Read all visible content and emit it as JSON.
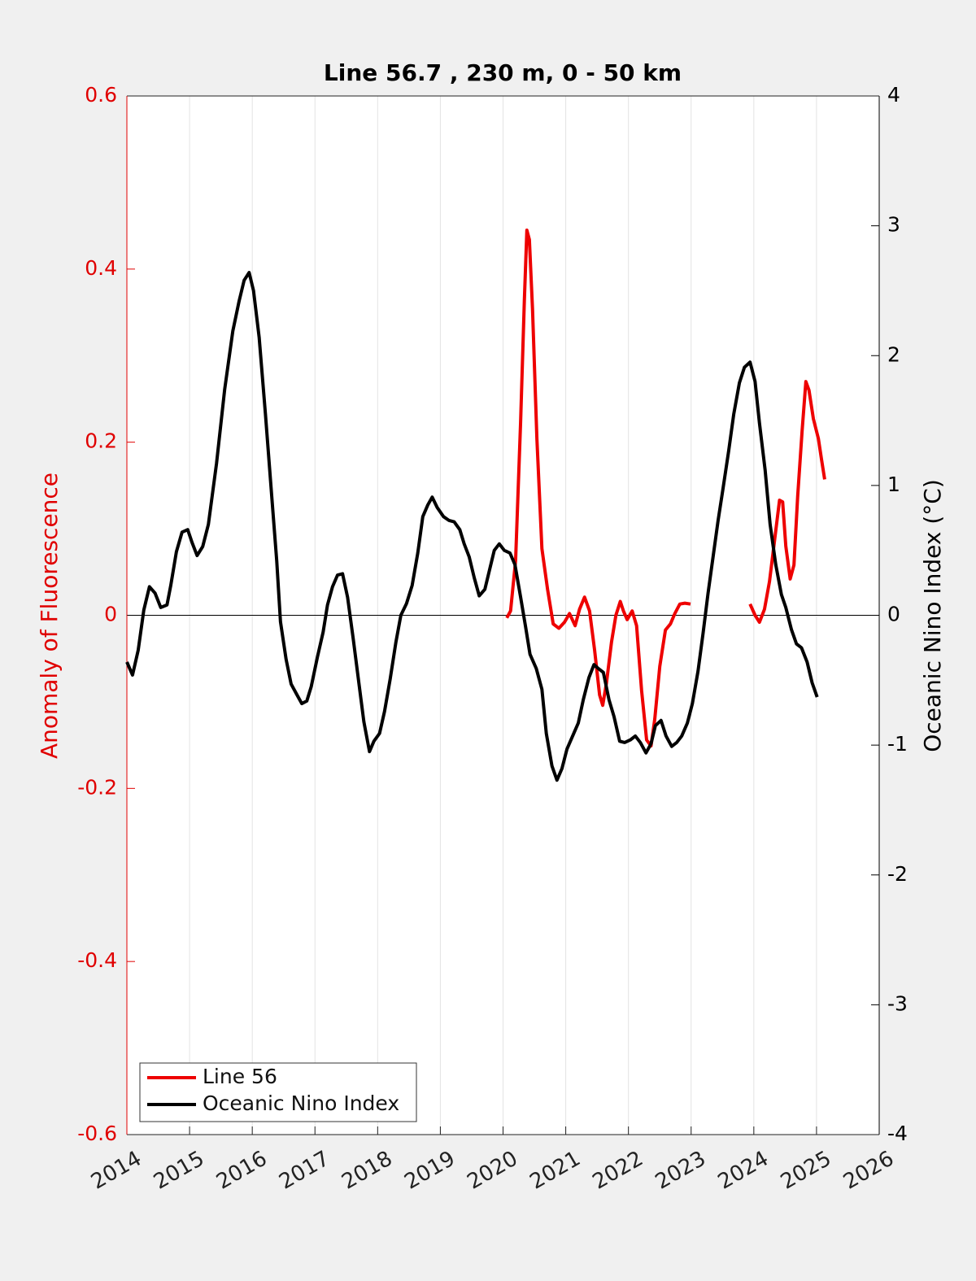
{
  "chart_data": {
    "type": "line",
    "title": "Line 56.7 , 230 m, 0 - 50 km",
    "ylabel": "Anomaly of Fluorescence",
    "y2label": "Oceanic Nino Index (°C)",
    "xlim": [
      2014,
      2026
    ],
    "xticks": [
      2014,
      2015,
      2016,
      2017,
      2018,
      2019,
      2020,
      2021,
      2022,
      2023,
      2024,
      2025,
      2026
    ],
    "ylim": [
      -0.6,
      0.6
    ],
    "yticks": [
      -0.6,
      -0.4,
      -0.2,
      0,
      0.2,
      0.4,
      0.6
    ],
    "y2lim": [
      -4,
      4
    ],
    "y2ticks": [
      -4,
      -3,
      -2,
      -1,
      0,
      1,
      2,
      3,
      4
    ],
    "ycolor": "#e00000",
    "y2color": "#000000",
    "grid": "x",
    "reference_line": 0,
    "legend": "lower left",
    "series": [
      {
        "name": "Line 56",
        "color": "#ee0000",
        "axis": "y",
        "x": [
          2020.06,
          2020.12,
          2020.2,
          2020.28,
          2020.34,
          2020.38,
          2020.42,
          2020.47,
          2020.54,
          2020.62,
          2020.71,
          2020.8,
          2020.89,
          2020.98,
          2021.06,
          2021.15,
          2021.22,
          2021.3,
          2021.38,
          2021.46,
          2021.54,
          2021.59,
          2021.65,
          2021.73,
          2021.8,
          2021.87,
          2021.92,
          2021.98,
          2022.06,
          2022.13,
          2022.21,
          2022.29,
          2022.36,
          2022.42,
          2022.5,
          2022.59,
          2022.67,
          2022.74,
          2022.82,
          2022.9,
          2022.99,
          2023.45,
          2023.94,
          2024.02,
          2024.09,
          2024.17,
          2024.25,
          2024.33,
          2024.41,
          2024.46,
          2024.51,
          2024.58,
          2024.64,
          2024.7,
          2024.77,
          2024.83,
          2024.88,
          2024.95,
          2025.03,
          2025.08,
          2025.13
        ],
        "values": [
          -0.003,
          0.005,
          0.063,
          0.223,
          0.364,
          0.445,
          0.434,
          0.354,
          0.204,
          0.077,
          0.03,
          -0.01,
          -0.015,
          -0.008,
          0.002,
          -0.012,
          0.007,
          0.021,
          0.005,
          -0.04,
          -0.092,
          -0.104,
          -0.078,
          -0.031,
          0,
          0.016,
          0.005,
          -0.005,
          0.005,
          -0.012,
          -0.087,
          -0.144,
          -0.151,
          -0.12,
          -0.059,
          -0.017,
          -0.01,
          0.002,
          0.013,
          0.014,
          0.013,
          null,
          0.013,
          0,
          -0.008,
          0.007,
          0.039,
          0.086,
          0.133,
          0.131,
          0.08,
          0.042,
          0.058,
          0.138,
          0.213,
          0.27,
          0.26,
          0.227,
          0.204,
          0.18,
          0.157
        ]
      },
      {
        "name": "Oceanic Nino Index",
        "color": "#000000",
        "axis": "y2",
        "x": [
          2014,
          2014.09,
          2014.18,
          2014.27,
          2014.36,
          2014.45,
          2014.54,
          2014.64,
          2014.7,
          2014.79,
          2014.88,
          2014.97,
          2015.04,
          2015.12,
          2015.21,
          2015.3,
          2015.43,
          2015.56,
          2015.69,
          2015.79,
          2015.87,
          2015.95,
          2016.02,
          2016.11,
          2016.21,
          2016.31,
          2016.39,
          2016.45,
          2016.54,
          2016.62,
          2016.71,
          2016.79,
          2016.87,
          2016.94,
          2017.04,
          2017.13,
          2017.2,
          2017.28,
          2017.36,
          2017.44,
          2017.52,
          2017.61,
          2017.7,
          2017.78,
          2017.87,
          2017.94,
          2018.03,
          2018.11,
          2018.2,
          2018.29,
          2018.37,
          2018.46,
          2018.55,
          2018.64,
          2018.72,
          2018.8,
          2018.87,
          2018.95,
          2019.05,
          2019.14,
          2019.22,
          2019.31,
          2019.38,
          2019.46,
          2019.54,
          2019.62,
          2019.71,
          2019.79,
          2019.86,
          2019.94,
          2020.02,
          2020.11,
          2020.19,
          2020.28,
          2020.36,
          2020.43,
          2020.53,
          2020.62,
          2020.69,
          2020.78,
          2020.86,
          2020.94,
          2021.02,
          2021.11,
          2021.2,
          2021.28,
          2021.37,
          2021.45,
          2021.52,
          2021.6,
          2021.69,
          2021.77,
          2021.86,
          2021.94,
          2022.03,
          2022.11,
          2022.19,
          2022.28,
          2022.36,
          2022.43,
          2022.52,
          2022.6,
          2022.69,
          2022.77,
          2022.85,
          2022.94,
          2023.02,
          2023.11,
          2023.19,
          2023.27,
          2023.35,
          2023.43,
          2023.51,
          2023.6,
          2023.68,
          2023.77,
          2023.85,
          2023.94,
          2024.02,
          2024.09,
          2024.18,
          2024.26,
          2024.35,
          2024.44,
          2024.51,
          2024.6,
          2024.68,
          2024.76,
          2024.85,
          2024.93,
          2025.01
        ],
        "values": [
          -0.36,
          -0.46,
          -0.27,
          0.04,
          0.22,
          0.17,
          0.06,
          0.08,
          0.23,
          0.49,
          0.64,
          0.66,
          0.56,
          0.46,
          0.53,
          0.7,
          1.17,
          1.74,
          2.19,
          2.42,
          2.58,
          2.64,
          2.5,
          2.14,
          1.55,
          0.92,
          0.42,
          -0.05,
          -0.34,
          -0.53,
          -0.61,
          -0.68,
          -0.66,
          -0.55,
          -0.32,
          -0.13,
          0.08,
          0.22,
          0.31,
          0.32,
          0.14,
          -0.18,
          -0.52,
          -0.82,
          -1.05,
          -0.97,
          -0.91,
          -0.74,
          -0.49,
          -0.21,
          0,
          0.09,
          0.23,
          0.48,
          0.76,
          0.85,
          0.91,
          0.83,
          0.76,
          0.73,
          0.72,
          0.66,
          0.55,
          0.45,
          0.29,
          0.15,
          0.2,
          0.36,
          0.5,
          0.55,
          0.5,
          0.48,
          0.39,
          0.14,
          -0.09,
          -0.3,
          -0.41,
          -0.57,
          -0.91,
          -1.16,
          -1.27,
          -1.18,
          -1.03,
          -0.93,
          -0.83,
          -0.65,
          -0.48,
          -0.38,
          -0.41,
          -0.44,
          -0.65,
          -0.78,
          -0.97,
          -0.98,
          -0.96,
          -0.93,
          -0.98,
          -1.06,
          -0.99,
          -0.85,
          -0.81,
          -0.93,
          -1.01,
          -0.98,
          -0.93,
          -0.83,
          -0.68,
          -0.43,
          -0.14,
          0.17,
          0.45,
          0.73,
          0.98,
          1.27,
          1.55,
          1.79,
          1.91,
          1.95,
          1.8,
          1.48,
          1.12,
          0.7,
          0.39,
          0.16,
          0.06,
          -0.11,
          -0.22,
          -0.25,
          -0.36,
          -0.52,
          -0.63
        ]
      }
    ]
  }
}
